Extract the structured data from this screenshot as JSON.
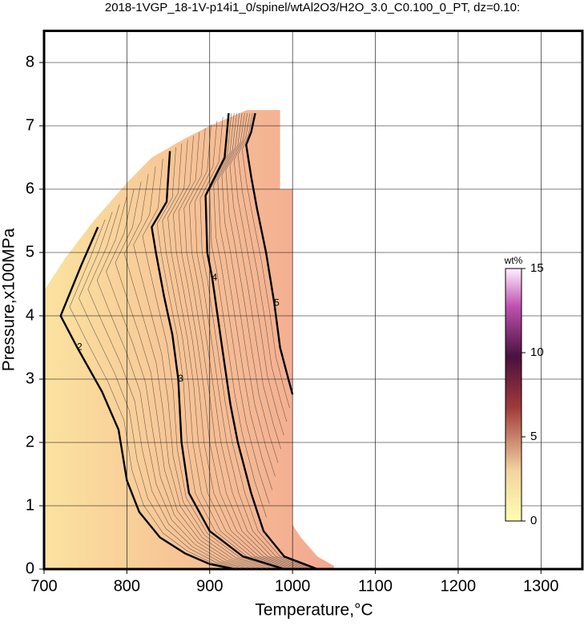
{
  "chart_data": {
    "type": "contour",
    "title": "2018-1VGP_18-1V-p14i1_0/spinel/wtAl2O3/H2O_3.0_C0.100_0_PT, dz=0.10:",
    "x_label": "Temperature,°C",
    "y_label": "Pressure,x100MPa",
    "xlim": [
      700,
      1350
    ],
    "ylim": [
      0,
      8.5
    ],
    "xticks": [
      700,
      800,
      900,
      1000,
      1100,
      1200,
      1300
    ],
    "yticks": [
      0,
      1,
      2,
      3,
      4,
      5,
      6,
      7,
      8
    ],
    "grid": true,
    "region": {
      "x": [
        700,
        1050,
        1050,
        1030,
        1010,
        1000,
        1000,
        985,
        985,
        945,
        900,
        870,
        830,
        800,
        760,
        725,
        700
      ],
      "y": [
        0,
        0,
        0.05,
        0.2,
        0.5,
        0.7,
        6.0,
        6.0,
        7.25,
        7.25,
        7.0,
        6.8,
        6.5,
        6.1,
        5.5,
        4.9,
        4.4
      ]
    },
    "contours": [
      {
        "level": 2,
        "x": [
          765,
          745,
          720,
          740,
          770,
          790,
          800,
          815,
          840,
          870,
          900,
          930
        ],
        "y": [
          5.4,
          4.8,
          4.0,
          3.5,
          2.8,
          2.2,
          1.4,
          0.9,
          0.5,
          0.25,
          0.08,
          0
        ]
      },
      {
        "level": 3,
        "x": [
          852,
          848,
          830,
          835,
          845,
          855,
          862,
          866,
          875,
          900,
          940,
          990
        ],
        "y": [
          6.6,
          5.8,
          5.4,
          5.0,
          4.3,
          3.7,
          3.0,
          2.0,
          1.2,
          0.6,
          0.2,
          0
        ]
      },
      {
        "level": 4,
        "x": [
          923,
          918,
          895,
          897,
          903,
          915,
          925,
          934,
          950,
          965,
          990,
          1030
        ],
        "y": [
          7.2,
          6.5,
          5.9,
          5.0,
          4.6,
          3.5,
          2.6,
          2.0,
          1.2,
          0.6,
          0.2,
          0
        ]
      },
      {
        "level": 5,
        "x": [
          955,
          950,
          944,
          950,
          957,
          968,
          978,
          985,
          995,
          1000
        ],
        "y": [
          7.2,
          6.9,
          6.7,
          6.2,
          5.7,
          5.0,
          4.2,
          3.5,
          3.0,
          2.76
        ]
      }
    ],
    "colorbar": {
      "label": "wt%",
      "lim": [
        0,
        15
      ],
      "ticks": [
        0,
        5,
        10,
        15
      ]
    }
  }
}
